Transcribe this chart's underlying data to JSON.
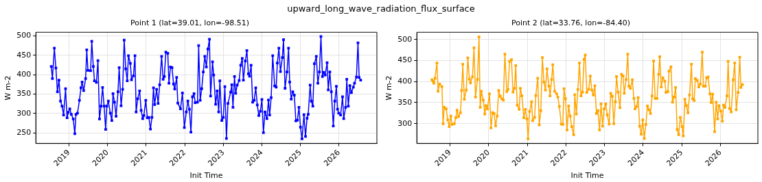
{
  "chart_data": [
    {
      "type": "other",
      "title": "upward_long_wave_radiation_flux_surface"
    },
    {
      "type": "line",
      "title": "Point 1 (lat=39.01, lon=-98.51)",
      "xlabel": "Init Time",
      "ylabel": "W m-2",
      "color": "#0000ff",
      "marker": "square",
      "grid": true,
      "xlim": [
        2018.14,
        2026.98
      ],
      "xticks": [
        2019,
        2020,
        2021,
        2022,
        2023,
        2024,
        2025,
        2026
      ],
      "ylim": [
        223,
        509
      ],
      "yticks": [
        250,
        300,
        350,
        400,
        450,
        500
      ],
      "x": [
        2018.54,
        2018.57,
        2018.62,
        2018.66,
        2018.7,
        2018.74,
        2018.78,
        2018.82,
        2018.86,
        2018.91,
        2018.95,
        2018.98,
        2019.02,
        2019.06,
        2019.11,
        2019.15,
        2019.18,
        2019.22,
        2019.27,
        2019.31,
        2019.34,
        2019.38,
        2019.43,
        2019.46,
        2019.49,
        2019.56,
        2019.59,
        2019.63,
        2019.66,
        2019.71,
        2019.75,
        2019.79,
        2019.83,
        2019.87,
        2019.91,
        2019.95,
        2019.98,
        2020.02,
        2020.07,
        2020.11,
        2020.14,
        2020.18,
        2020.22,
        2020.27,
        2020.3,
        2020.35,
        2020.39,
        2020.43,
        2020.47,
        2020.51,
        2020.54,
        2020.59,
        2020.62,
        2020.67,
        2020.71,
        2020.74,
        2020.78,
        2020.83,
        2020.87,
        2020.91,
        2020.94,
        2020.99,
        2021.03,
        2021.07,
        2021.11,
        2021.15,
        2021.19,
        2021.22,
        2021.27,
        2021.31,
        2021.35,
        2021.4,
        2021.44,
        2021.47,
        2021.51,
        2021.56,
        2021.59,
        2021.63,
        2021.67,
        2021.71,
        2021.74,
        2021.79,
        2021.82,
        2021.89,
        2021.94,
        2021.99,
        2022.04,
        2022.08,
        2022.12,
        2022.16,
        2022.2,
        2022.24,
        2022.27,
        2022.33,
        2022.36,
        2022.4,
        2022.44,
        2022.48,
        2022.52,
        2022.56,
        2022.6,
        2022.64,
        2022.67,
        2022.72,
        2022.75,
        2022.8,
        2022.84,
        2022.88,
        2022.91,
        2022.96,
        2023.0,
        2023.04,
        2023.08,
        2023.12,
        2023.19,
        2023.22,
        2023.25,
        2023.29,
        2023.32,
        2023.36,
        2023.41,
        2023.45,
        2023.49,
        2023.52,
        2023.57,
        2023.61,
        2023.65,
        2023.68,
        2023.72,
        2023.76,
        2023.8,
        2023.84,
        2023.88,
        2023.92,
        2023.96,
        2024.0,
        2024.04,
        2024.08,
        2024.13,
        2024.17,
        2024.2,
        2024.24,
        2024.28,
        2024.33,
        2024.37,
        2024.4,
        2024.44,
        2024.48,
        2024.53,
        2024.56,
        2024.6,
        2024.65,
        2024.69,
        2024.72,
        2024.76,
        2024.8,
        2024.84,
        2024.88,
        2024.92,
        2024.96,
        2025.0,
        2025.04,
        2025.09,
        2025.13,
        2025.17,
        2025.2,
        2025.25,
        2025.28,
        2025.32,
        2025.36,
        2025.41,
        2025.45,
        2025.49,
        2025.53,
        2025.57,
        2025.6,
        2025.64,
        2025.69,
        2025.72,
        2025.76,
        2025.8,
        2025.85,
        2025.89,
        2025.93,
        2025.96,
        2025.99,
        2026.04,
        2026.09,
        2026.12,
        2026.17,
        2026.2,
        2026.24,
        2026.28,
        2026.32,
        2026.37,
        2026.4,
        2026.45,
        2026.49,
        2026.52,
        2026.56
      ],
      "values": [
        421,
        390,
        468,
        417,
        356,
        386,
        332,
        319,
        296,
        364,
        289,
        303,
        312,
        298,
        286,
        248,
        298,
        301,
        334,
        366,
        381,
        359,
        390,
        464,
        411,
        410,
        486,
        421,
        384,
        380,
        436,
        286,
        319,
        367,
        319,
        259,
        319,
        332,
        301,
        282,
        351,
        329,
        293,
        356,
        418,
        320,
        362,
        489,
        415,
        384,
        449,
        429,
        387,
        397,
        449,
        304,
        338,
        358,
        308,
        287,
        295,
        334,
        289,
        290,
        260,
        290,
        366,
        323,
        362,
        326,
        374,
        447,
        388,
        395,
        458,
        455,
        378,
        420,
        418,
        376,
        363,
        393,
        327,
        312,
        353,
        264,
        304,
        332,
        311,
        252,
        343,
        351,
        328,
        329,
        475,
        334,
        364,
        407,
        447,
        420,
        466,
        491,
        345,
        433,
        399,
        324,
        358,
        304,
        384,
        282,
        290,
        369,
        236,
        326,
        355,
        374,
        316,
        395,
        352,
        373,
        385,
        424,
        442,
        386,
        435,
        462,
        402,
        396,
        424,
        329,
        334,
        366,
        322,
        295,
        306,
        336,
        251,
        304,
        287,
        335,
        296,
        341,
        449,
        371,
        368,
        430,
        468,
        408,
        444,
        490,
        365,
        407,
        468,
        381,
        337,
        356,
        347,
        281,
        283,
        316,
        265,
        235,
        297,
        241,
        288,
        298,
        373,
        332,
        319,
        428,
        447,
        378,
        407,
        498,
        395,
        406,
        399,
        431,
        361,
        407,
        356,
        268,
        332,
        370,
        311,
        301,
        296,
        343,
        287,
        316,
        388,
        319,
        372,
        354,
        368,
        378,
        394,
        482,
        393,
        386
      ]
    },
    {
      "type": "line",
      "title": "Point 2 (lat=33.76, lon=-84.40)",
      "xlabel": "Init Time",
      "ylabel": "W m-2",
      "color": "#ffa500",
      "marker": "square",
      "grid": true,
      "xlim": [
        2018.14,
        2026.97
      ],
      "xticks": [
        2019,
        2020,
        2021,
        2022,
        2023,
        2024,
        2025,
        2026
      ],
      "ylim": [
        253,
        517
      ],
      "yticks": [
        300,
        350,
        400,
        450,
        500
      ],
      "x": [
        2018.53,
        2018.56,
        2018.58,
        2018.61,
        2018.66,
        2018.69,
        2018.73,
        2018.79,
        2018.82,
        2018.85,
        2018.9,
        2018.94,
        2018.98,
        2019.02,
        2019.05,
        2019.11,
        2019.15,
        2019.18,
        2019.22,
        2019.27,
        2019.3,
        2019.33,
        2019.37,
        2019.42,
        2019.46,
        2019.5,
        2019.53,
        2019.58,
        2019.62,
        2019.66,
        2019.71,
        2019.75,
        2019.78,
        2019.81,
        2019.86,
        2019.9,
        2019.93,
        2019.97,
        2020.02,
        2020.06,
        2020.1,
        2020.14,
        2020.18,
        2020.22,
        2020.26,
        2020.3,
        2020.34,
        2020.38,
        2020.42,
        2020.47,
        2020.5,
        2020.54,
        2020.59,
        2020.63,
        2020.67,
        2020.7,
        2020.74,
        2020.79,
        2020.82,
        2020.86,
        2020.91,
        2020.95,
        2020.99,
        2021.02,
        2021.06,
        2021.11,
        2021.14,
        2021.19,
        2021.22,
        2021.27,
        2021.31,
        2021.35,
        2021.39,
        2021.43,
        2021.47,
        2021.51,
        2021.56,
        2021.59,
        2021.63,
        2021.66,
        2021.71,
        2021.76,
        2021.79,
        2021.83,
        2021.88,
        2021.92,
        2021.95,
        2021.99,
        2022.03,
        2022.07,
        2022.11,
        2022.15,
        2022.2,
        2022.23,
        2022.27,
        2022.31,
        2022.35,
        2022.39,
        2022.43,
        2022.47,
        2022.5,
        2022.54,
        2022.59,
        2022.63,
        2022.67,
        2022.71,
        2022.75,
        2022.79,
        2022.83,
        2022.87,
        2022.91,
        2022.95,
        2022.99,
        2023.03,
        2023.07,
        2023.12,
        2023.16,
        2023.2,
        2023.24,
        2023.28,
        2023.31,
        2023.35,
        2023.4,
        2023.44,
        2023.48,
        2023.51,
        2023.56,
        2023.6,
        2023.63,
        2023.67,
        2023.72,
        2023.76,
        2023.79,
        2023.83,
        2023.87,
        2023.91,
        2023.95,
        2023.99,
        2024.03,
        2024.07,
        2024.11,
        2024.15,
        2024.19,
        2024.23,
        2024.27,
        2024.31,
        2024.36,
        2024.4,
        2024.43,
        2024.47,
        2024.51,
        2024.56,
        2024.59,
        2024.64,
        2024.67,
        2024.72,
        2024.76,
        2024.8,
        2024.84,
        2024.88,
        2024.92,
        2024.96,
        2025.01,
        2025.04,
        2025.08,
        2025.12,
        2025.16,
        2025.2,
        2025.25,
        2025.28,
        2025.32,
        2025.35,
        2025.4,
        2025.44,
        2025.48,
        2025.53,
        2025.56,
        2025.61,
        2025.64,
        2025.68,
        2025.73,
        2025.76,
        2025.8,
        2025.85,
        2025.89,
        2025.93,
        2025.96,
        2026.01,
        2026.05,
        2026.08,
        2026.12,
        2026.17,
        2026.2,
        2026.24,
        2026.28,
        2026.33,
        2026.37,
        2026.41,
        2026.46,
        2026.5,
        2026.53,
        2026.57
      ],
      "values": [
        404,
        401,
        396,
        408,
        444,
        377,
        394,
        388,
        300,
        339,
        335,
        309,
        293,
        318,
        298,
        300,
        314,
        332,
        317,
        326,
        379,
        441,
        358,
        380,
        456,
        406,
        397,
        411,
        480,
        363,
        405,
        506,
        339,
        377,
        356,
        323,
        343,
        335,
        371,
        290,
        326,
        324,
        295,
        318,
        379,
        365,
        359,
        356,
        465,
        376,
        381,
        448,
        452,
        375,
        384,
        438,
        344,
        334,
        384,
        366,
        314,
        334,
        311,
        264,
        329,
        352,
        307,
        315,
        367,
        408,
        297,
        331,
        457,
        399,
        380,
        430,
        389,
        366,
        405,
        440,
        377,
        371,
        363,
        341,
        299,
        298,
        383,
        359,
        285,
        342,
        318,
        293,
        274,
        369,
        323,
        381,
        444,
        366,
        375,
        453,
        463,
        374,
        382,
        413,
        380,
        368,
        390,
        324,
        331,
        285,
        347,
        294,
        335,
        347,
        321,
        299,
        372,
        365,
        300,
        352,
        412,
        375,
        338,
        417,
        413,
        372,
        405,
        465,
        389,
        384,
        404,
        360,
        335,
        341,
        362,
        294,
        275,
        309,
        265,
        298,
        342,
        333,
        324,
        366,
        449,
        360,
        360,
        417,
        459,
        387,
        409,
        401,
        374,
        376,
        425,
        435,
        351,
        363,
        386,
        286,
        274,
        315,
        293,
        271,
        358,
        343,
        326,
        368,
        441,
        359,
        355,
        407,
        403,
        387,
        394,
        470,
        389,
        389,
        409,
        411,
        371,
        350,
        370,
        281,
        351,
        311,
        343,
        330,
        306,
        344,
        339,
        366,
        448,
        336,
        328,
        404,
        444,
        333,
        374,
        458,
        386,
        393
      ]
    }
  ]
}
